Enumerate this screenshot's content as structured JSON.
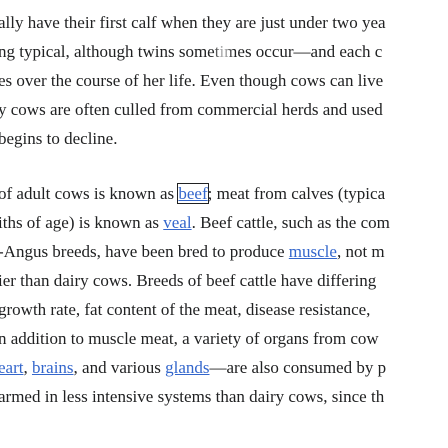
{
  "paragraph_1": {
    "lines": [
      {
        "parts": [
          {
            "text": "ally have their first calf when they are just under two yea"
          }
        ]
      },
      {
        "parts": [
          {
            "text": "ng typical, although twins sometimes occur—and each c"
          }
        ]
      },
      {
        "parts": [
          {
            "text": "es over the course of her life. Even though cows can live"
          }
        ]
      },
      {
        "parts": [
          {
            "text": "y cows are often culled from commercial herds and used"
          }
        ]
      },
      {
        "parts": [
          {
            "text": " begins to decline."
          }
        ]
      }
    ]
  },
  "paragraph_2": {
    "lines": [
      {
        "parts": [
          {
            "text": "of adult cows is known as "
          },
          {
            "text": "beef",
            "link": true,
            "boxed": true
          },
          {
            "text": "; meat from calves (typica"
          }
        ]
      },
      {
        "parts": [
          {
            "text": "iths of age) is known as "
          },
          {
            "text": "veal",
            "link": true
          },
          {
            "text": ". Beef cattle, such as the com"
          }
        ]
      },
      {
        "parts": [
          {
            "text": "-Angus breeds, have been bred to produce "
          },
          {
            "text": "muscle",
            "link": true
          },
          {
            "text": ", not m"
          }
        ]
      },
      {
        "parts": [
          {
            "text": "ier than dairy cows. Breeds of beef cattle have differing"
          }
        ]
      },
      {
        "parts": [
          {
            "text": " growth rate, fat content of the meat, disease resistance,"
          }
        ]
      },
      {
        "parts": [
          {
            "text": "n addition to muscle meat, a variety of organs from cow"
          }
        ]
      },
      {
        "parts": [
          {
            "text": "eart",
            "link": true
          },
          {
            "text": ", "
          },
          {
            "text": "brains",
            "link": true
          },
          {
            "text": ", and various "
          },
          {
            "text": "glands",
            "link": true
          },
          {
            "text": "—are also consumed by p"
          }
        ]
      },
      {
        "parts": [
          {
            "text": "armed in less intensive systems than dairy cows, since th"
          }
        ]
      }
    ]
  }
}
